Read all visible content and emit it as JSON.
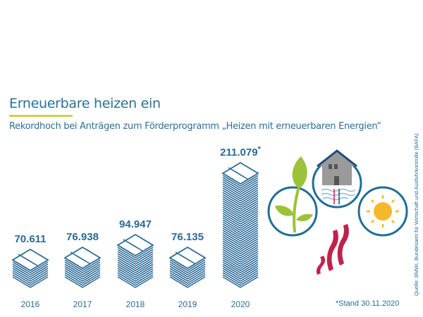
{
  "header": {
    "title": "Erneuerbare heizen ein",
    "subtitle": "Rekordhoch bei Anträgen zum Förderprogramm „Heizen mit erneuerbaren Energien“"
  },
  "chart_data": {
    "type": "bar",
    "categories": [
      "2016",
      "2017",
      "2018",
      "2019",
      "2020"
    ],
    "values": [
      70611,
      76938,
      94947,
      76135,
      211079
    ],
    "labels": [
      "70.611",
      "76.938",
      "94.947",
      "76.135",
      "211.079"
    ],
    "annotation_mark": "*",
    "color": "#2b6a96"
  },
  "footnote": "*Stand 30.11.2020",
  "source": "Quelle: BMWi, Bundesamt für Wirtschaft und Ausfuhrkontrolle (BAFA)",
  "icons": [
    "leaf-icon",
    "house-geothermal-icon",
    "sun-icon",
    "heat-waves-icon"
  ],
  "colors": {
    "title": "#2b6f97",
    "accent": "#c8d24a",
    "leaf": "#9cc23a",
    "sun": "#f4b82a",
    "heat": "#c0224a"
  }
}
